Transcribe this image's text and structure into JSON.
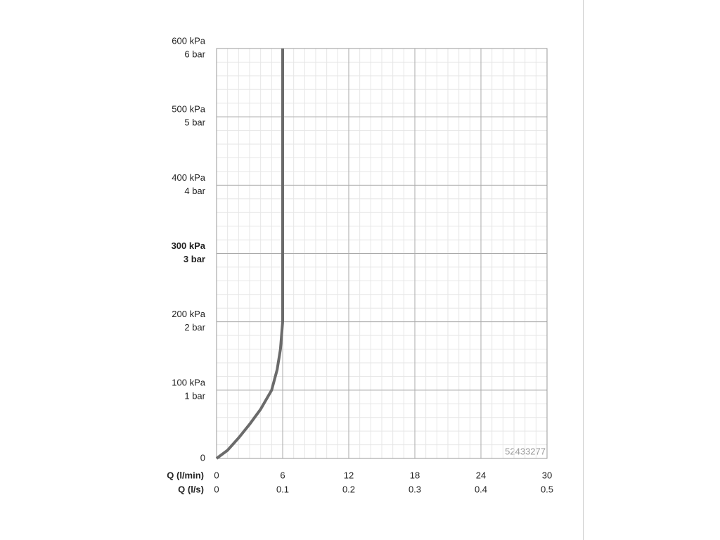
{
  "chart_data": {
    "type": "line",
    "xlabel": "Q (l/min)",
    "x2label": "Q (l/s)",
    "xlim": [
      0,
      30
    ],
    "xticks": [
      0,
      6,
      12,
      18,
      24,
      30
    ],
    "x2lim": [
      0,
      0.5
    ],
    "x2ticks": [
      0,
      0.1,
      0.2,
      0.3,
      0.4,
      0.5
    ],
    "ylim": [
      0,
      600
    ],
    "yticks": [
      0,
      {
        "value": 100,
        "label": "100 kPa"
      },
      {
        "value": 200,
        "label": "200 kPa"
      },
      {
        "value": 300,
        "label": "300 kPa"
      },
      {
        "value": 400,
        "label": "400 kPa"
      },
      {
        "value": 500,
        "label": "500 kPa"
      },
      {
        "value": 600,
        "label": "600 kPa"
      }
    ],
    "y2lim": [
      0,
      6
    ],
    "y2ticks": [
      {
        "value": 1,
        "label": "1 bar"
      },
      {
        "value": 2,
        "label": "2 bar"
      },
      {
        "value": 3,
        "label": "3 bar"
      },
      {
        "value": 4,
        "label": "4 bar"
      },
      {
        "value": 5,
        "label": "5 bar"
      },
      {
        "value": 6,
        "label": "6 bar"
      }
    ],
    "grid": true,
    "minor_grid": {
      "x_step": 1,
      "y_step": 20
    },
    "series": [
      {
        "color": "#6b6b6b",
        "x": [
          0,
          1,
          2,
          3,
          4,
          5,
          5.5,
          5.8,
          6,
          6
        ],
        "values": [
          0,
          12,
          30,
          50,
          72,
          100,
          130,
          160,
          200,
          600
        ]
      }
    ],
    "annotation": "52433277"
  }
}
